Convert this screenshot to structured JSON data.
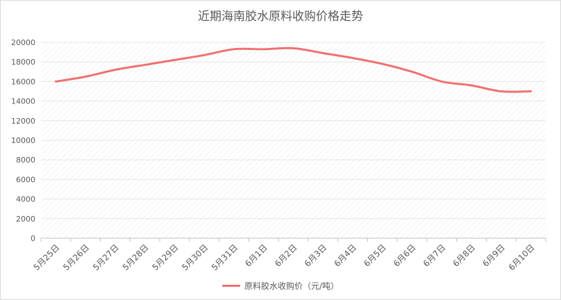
{
  "chart_data": {
    "type": "line",
    "title": "近期海南胶水原料收购价格走势",
    "xlabel": "",
    "ylabel": "",
    "categories": [
      "5月25日",
      "5月26日",
      "5月27日",
      "5月28日",
      "5月29日",
      "5月30日",
      "5月31日",
      "6月1日",
      "6月2日",
      "6月3日",
      "6月4日",
      "6月5日",
      "6月6日",
      "6月7日",
      "6月8日",
      "6月9日",
      "6月10日"
    ],
    "series": [
      {
        "name": "原料胶水收购价（元/吨）",
        "color": "#f07070",
        "values": [
          16000,
          16500,
          17200,
          17700,
          18200,
          18700,
          19300,
          19300,
          19400,
          18900,
          18400,
          17800,
          17000,
          16000,
          15600,
          15000,
          15000
        ]
      }
    ],
    "y_ticks": [
      "0",
      "2000",
      "4000",
      "6000",
      "8000",
      "10000",
      "12000",
      "14000",
      "16000",
      "18000",
      "20000"
    ],
    "ylim": [
      0,
      20000
    ],
    "grid": true,
    "legend_position": "bottom"
  }
}
